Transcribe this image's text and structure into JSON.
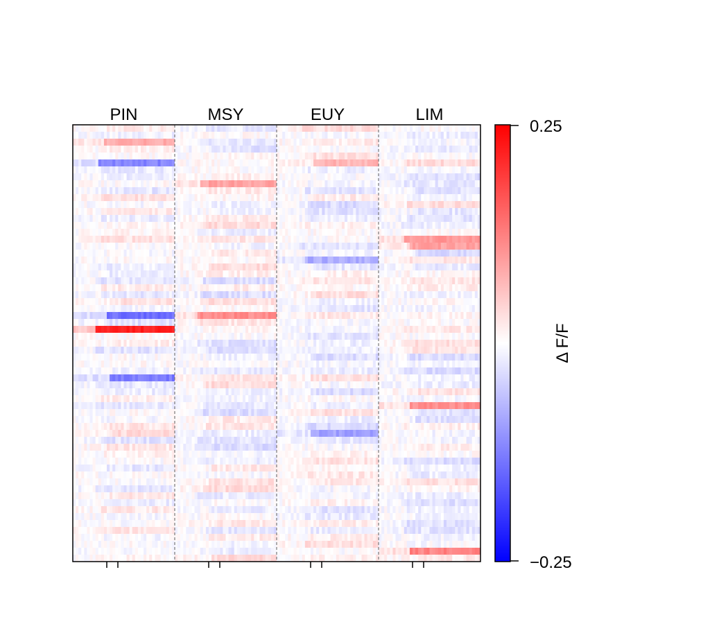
{
  "chart_data": {
    "type": "heatmap",
    "panels": [
      "PIN",
      "MSY",
      "EUY",
      "LIM"
    ],
    "rows": 63,
    "colorbar": {
      "label": "Δ F/F",
      "colormap": "bwr",
      "vmin": -0.25,
      "vmax": 0.25,
      "tick_labels": [
        "0.25",
        "−0.25"
      ]
    },
    "panel_separators": "dashed-gray",
    "x_ticks_per_panel": 2,
    "highlights": [
      {
        "panel": "PIN",
        "row": 2,
        "value": 0.08
      },
      {
        "panel": "PIN",
        "row": 5,
        "value": -0.12
      },
      {
        "panel": "PIN",
        "row": 27,
        "value": -0.14
      },
      {
        "panel": "PIN",
        "row": 29,
        "value": 0.22
      },
      {
        "panel": "PIN",
        "row": 36,
        "value": -0.13
      },
      {
        "panel": "MSY",
        "row": 8,
        "value": 0.09
      },
      {
        "panel": "MSY",
        "row": 27,
        "value": 0.11
      },
      {
        "panel": "EUY",
        "row": 5,
        "value": 0.07
      },
      {
        "panel": "EUY",
        "row": 19,
        "value": -0.08
      },
      {
        "panel": "EUY",
        "row": 44,
        "value": -0.09
      },
      {
        "panel": "LIM",
        "row": 16,
        "value": 0.1
      },
      {
        "panel": "LIM",
        "row": 17,
        "value": 0.09
      },
      {
        "panel": "LIM",
        "row": 40,
        "value": 0.11
      },
      {
        "panel": "LIM",
        "row": 61,
        "value": 0.12
      }
    ]
  }
}
